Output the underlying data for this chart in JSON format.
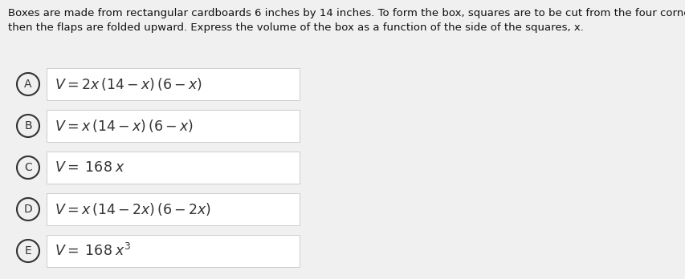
{
  "background_color": "#f0f0f0",
  "option_bg_color": "#ffffff",
  "option_border_color": "#cccccc",
  "circle_color": "#333333",
  "text_color": "#333333",
  "question_color": "#111111",
  "question_line1": "Boxes are made from rectangular cardboards 6 inches by 14 inches. To form the box, squares are to be cut from the four corners,",
  "question_line2": "then the flaps are folded upward. Express the volume of the box as a function of the side of the squares, x.",
  "labels": [
    "A",
    "B",
    "C",
    "D",
    "E"
  ],
  "formulas": [
    "$V = 2x\\,(14 - x)\\,(6 - x)$",
    "$V = x\\,(14 - x)\\,(6 - x)$",
    "$V =\\;168\\;x$",
    "$V = x\\,(14 - 2x)\\,(6 - 2x)$",
    "$V =\\;168\\;x^3$"
  ],
  "question_fontsize": 9.5,
  "formula_fontsize": 12.5,
  "label_fontsize": 10,
  "fig_width": 8.54,
  "fig_height": 3.48,
  "dpi": 100
}
